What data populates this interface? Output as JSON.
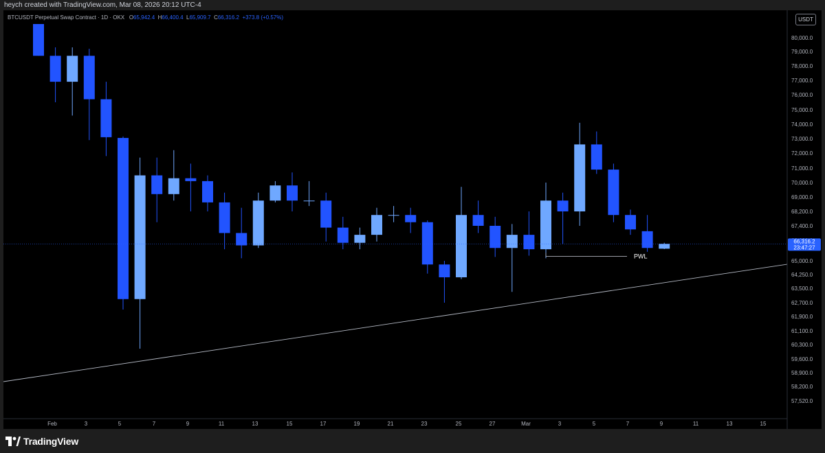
{
  "header": {
    "credit": "heych created with TradingView.com, Mar 08, 2026 20:12 UTC-4"
  },
  "legend": {
    "symbol": "BTCUSDT Perpetual Swap Contract · 1D · OKX",
    "o_label": "O",
    "o_value": "65,942.4",
    "h_label": "H",
    "h_value": "66,400.4",
    "l_label": "L",
    "l_value": "65,909.7",
    "c_label": "C",
    "c_value": "66,316.2",
    "change": "+373.8 (+0.57%)"
  },
  "currency_button": "USDT",
  "footer": {
    "brand": "TradingView"
  },
  "colors": {
    "up": "#6fa8ff",
    "down": "#2254ff",
    "axis_text": "#b2b5be",
    "background": "#000000",
    "price_tag": "#2962ff"
  },
  "chart_data": {
    "type": "candlestick",
    "title": "BTCUSDT Perpetual Swap Contract · 1D · OKX",
    "x_ticks": [
      "9",
      "Feb",
      "3",
      "5",
      "7",
      "9",
      "11",
      "13",
      "15",
      "17",
      "19",
      "21",
      "23",
      "25",
      "27",
      "Mar",
      "3",
      "5",
      "7",
      "9",
      "11",
      "13",
      "15"
    ],
    "y_ticks": [
      "80,000.0",
      "79,000.0",
      "78,000.0",
      "77,000.0",
      "76,000.0",
      "75,000.0",
      "74,000.0",
      "73,000.0",
      "72,000.0",
      "71,000.0",
      "70,000.0",
      "69,000.0",
      "68,200.0",
      "67,400.0",
      "66,600.0",
      "65,000.0",
      "64,250.0",
      "63,500.0",
      "62,700.0",
      "61,900.0",
      "61,100.0",
      "60,300.0",
      "59,600.0",
      "58,900.0",
      "58,200.0",
      "57,520.0"
    ],
    "last_price": "66,316.2",
    "countdown": "23:47:27",
    "annotations": [
      {
        "text": "PWL",
        "price": 65350
      }
    ],
    "candles": [
      {
        "date": "Jan 31",
        "open": 81000,
        "high": 81000,
        "low": 78700,
        "close": 78700
      },
      {
        "date": "Feb 1",
        "open": 78700,
        "high": 79300,
        "low": 75500,
        "close": 76900
      },
      {
        "date": "Feb 2",
        "open": 76900,
        "high": 79300,
        "low": 74600,
        "close": 78700
      },
      {
        "date": "Feb 3",
        "open": 78700,
        "high": 79200,
        "low": 72900,
        "close": 75700
      },
      {
        "date": "Feb 4",
        "open": 75700,
        "high": 76900,
        "low": 71800,
        "close": 73100
      },
      {
        "date": "Feb 5",
        "open": 73050,
        "high": 73150,
        "low": 62300,
        "close": 62900
      },
      {
        "date": "Feb 6",
        "open": 62900,
        "high": 71700,
        "low": 60100,
        "close": 70500
      },
      {
        "date": "Feb 7",
        "open": 70500,
        "high": 71700,
        "low": 67600,
        "close": 69200
      },
      {
        "date": "Feb 8",
        "open": 69200,
        "high": 72200,
        "low": 68800,
        "close": 70300
      },
      {
        "date": "Feb 9",
        "open": 70300,
        "high": 71300,
        "low": 68200,
        "close": 70100
      },
      {
        "date": "Feb 10",
        "open": 70100,
        "high": 70500,
        "low": 68200,
        "close": 68700
      },
      {
        "date": "Feb 11",
        "open": 68700,
        "high": 69300,
        "low": 65900,
        "close": 67000
      },
      {
        "date": "Feb 12",
        "open": 67000,
        "high": 68400,
        "low": 65200,
        "close": 66200
      },
      {
        "date": "Feb 13",
        "open": 66200,
        "high": 69300,
        "low": 66000,
        "close": 68800
      },
      {
        "date": "Feb 14",
        "open": 68800,
        "high": 70100,
        "low": 68700,
        "close": 69800
      },
      {
        "date": "Feb 15",
        "open": 69800,
        "high": 70700,
        "low": 68200,
        "close": 68800
      },
      {
        "date": "Feb 16",
        "open": 68800,
        "high": 70100,
        "low": 68500,
        "close": 68800
      },
      {
        "date": "Feb 17",
        "open": 68800,
        "high": 69300,
        "low": 66500,
        "close": 67300
      },
      {
        "date": "Feb 18",
        "open": 67300,
        "high": 67900,
        "low": 65900,
        "close": 66400
      },
      {
        "date": "Feb 19",
        "open": 66400,
        "high": 67300,
        "low": 65900,
        "close": 66900
      },
      {
        "date": "Feb 20",
        "open": 66900,
        "high": 68400,
        "low": 66500,
        "close": 68000
      },
      {
        "date": "Feb 21",
        "open": 68000,
        "high": 68500,
        "low": 67600,
        "close": 68000
      },
      {
        "date": "Feb 22",
        "open": 68000,
        "high": 68400,
        "low": 67000,
        "close": 67600
      },
      {
        "date": "Feb 23",
        "open": 67600,
        "high": 67700,
        "low": 64300,
        "close": 64800
      },
      {
        "date": "Feb 24",
        "open": 64800,
        "high": 65000,
        "low": 62700,
        "close": 64100
      },
      {
        "date": "Feb 25",
        "open": 64100,
        "high": 69700,
        "low": 64000,
        "close": 68000
      },
      {
        "date": "Feb 26",
        "open": 68000,
        "high": 68800,
        "low": 67000,
        "close": 67400
      },
      {
        "date": "Feb 27",
        "open": 67400,
        "high": 67900,
        "low": 65300,
        "close": 66000
      },
      {
        "date": "Feb 28",
        "open": 66000,
        "high": 67500,
        "low": 63300,
        "close": 66900
      },
      {
        "date": "Mar 1",
        "open": 66900,
        "high": 68200,
        "low": 65400,
        "close": 65900
      },
      {
        "date": "Mar 2",
        "open": 65900,
        "high": 70000,
        "low": 65200,
        "close": 68800
      },
      {
        "date": "Mar 3",
        "open": 68800,
        "high": 69300,
        "low": 66300,
        "close": 68200
      },
      {
        "date": "Mar 4",
        "open": 68200,
        "high": 74100,
        "low": 67400,
        "close": 72600
      },
      {
        "date": "Mar 5",
        "open": 72600,
        "high": 73500,
        "low": 70600,
        "close": 70900
      },
      {
        "date": "Mar 6",
        "open": 70900,
        "high": 71300,
        "low": 67600,
        "close": 68000
      },
      {
        "date": "Mar 7",
        "open": 68000,
        "high": 68300,
        "low": 66900,
        "close": 67200
      },
      {
        "date": "Mar 8",
        "open": 67100,
        "high": 68000,
        "low": 65700,
        "close": 66000
      },
      {
        "date": "Mar 9",
        "open": 65942.4,
        "high": 66400.4,
        "low": 65909.7,
        "close": 66316.2
      }
    ]
  }
}
